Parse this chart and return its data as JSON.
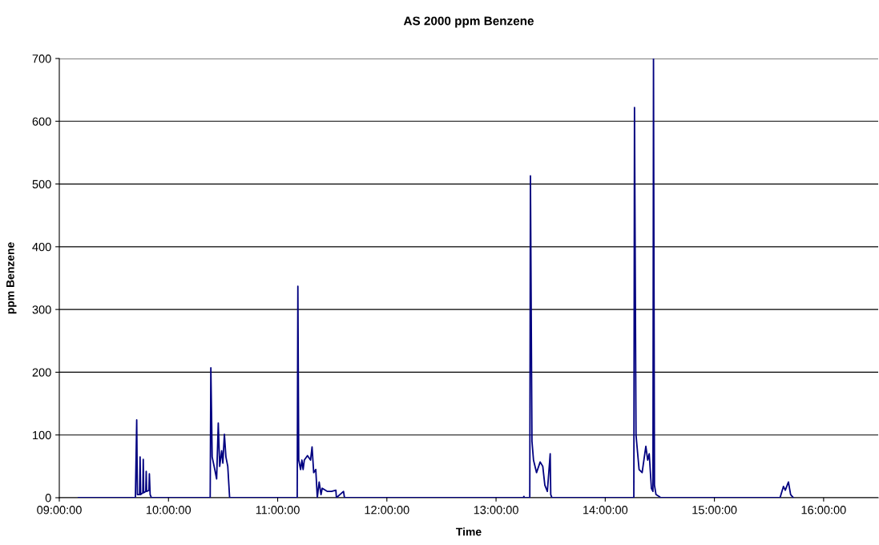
{
  "chart_data": {
    "type": "line",
    "title": "AS 2000 ppm Benzene",
    "xlabel": "Time",
    "ylabel": "ppm Benzene",
    "series": [
      {
        "color": "#000080",
        "x": [
          9.176,
          9.697,
          9.709,
          9.715,
          9.735,
          9.74,
          9.745,
          9.765,
          9.769,
          9.773,
          9.792,
          9.796,
          9.8,
          9.821,
          9.825,
          9.832,
          9.844,
          10.382,
          10.388,
          10.396,
          10.4,
          10.424,
          10.441,
          10.456,
          10.469,
          10.487,
          10.498,
          10.512,
          10.526,
          10.543,
          10.56,
          11.179,
          11.185,
          11.193,
          11.21,
          11.222,
          11.233,
          11.244,
          11.273,
          11.301,
          11.315,
          11.33,
          11.349,
          11.363,
          11.38,
          11.397,
          11.408,
          11.456,
          11.493,
          11.533,
          11.538,
          11.603,
          11.612,
          13.25,
          13.255,
          13.26,
          13.309,
          13.315,
          13.329,
          13.343,
          13.371,
          13.404,
          13.428,
          13.447,
          13.47,
          13.496,
          13.501,
          13.512,
          14.262,
          14.268,
          14.282,
          14.31,
          14.338,
          14.372,
          14.389,
          14.403,
          14.423,
          14.437,
          14.442,
          14.451,
          14.465,
          14.494,
          14.507,
          15.601,
          15.632,
          15.649,
          15.678,
          15.698,
          15.723
        ],
        "values": [
          0,
          0,
          124,
          5,
          5,
          65,
          5,
          8,
          61,
          8,
          10,
          42,
          10,
          12,
          38,
          5,
          0,
          0,
          207,
          115,
          65,
          45,
          30,
          119,
          50,
          75,
          55,
          101,
          65,
          50,
          0,
          0,
          337,
          60,
          45,
          60,
          45,
          60,
          67,
          60,
          81,
          40,
          45,
          0,
          25,
          5,
          15,
          10,
          10,
          12,
          0,
          10,
          0,
          0,
          2,
          0,
          0,
          513,
          90,
          60,
          40,
          57,
          50,
          20,
          10,
          70,
          5,
          0,
          0,
          622,
          100,
          45,
          40,
          82,
          60,
          70,
          15,
          10,
          700,
          20,
          5,
          2,
          0,
          0,
          18,
          12,
          25,
          5,
          0
        ]
      }
    ],
    "xlim": [
      9,
      16.5
    ],
    "xticks": [
      {
        "value": 9,
        "label": "09:00:00"
      },
      {
        "value": 10,
        "label": "10:00:00"
      },
      {
        "value": 11,
        "label": "11:00:00"
      },
      {
        "value": 12,
        "label": "12:00:00"
      },
      {
        "value": 13,
        "label": "13:00:00"
      },
      {
        "value": 14,
        "label": "14:00:00"
      },
      {
        "value": 15,
        "label": "15:00:00"
      },
      {
        "value": 16,
        "label": "16:00:00"
      }
    ],
    "ylim": [
      0,
      700
    ],
    "yticks": [
      0,
      100,
      200,
      300,
      400,
      500,
      600,
      700
    ],
    "grid": "y",
    "legend": false,
    "marker": "none",
    "line_style": "solid"
  }
}
